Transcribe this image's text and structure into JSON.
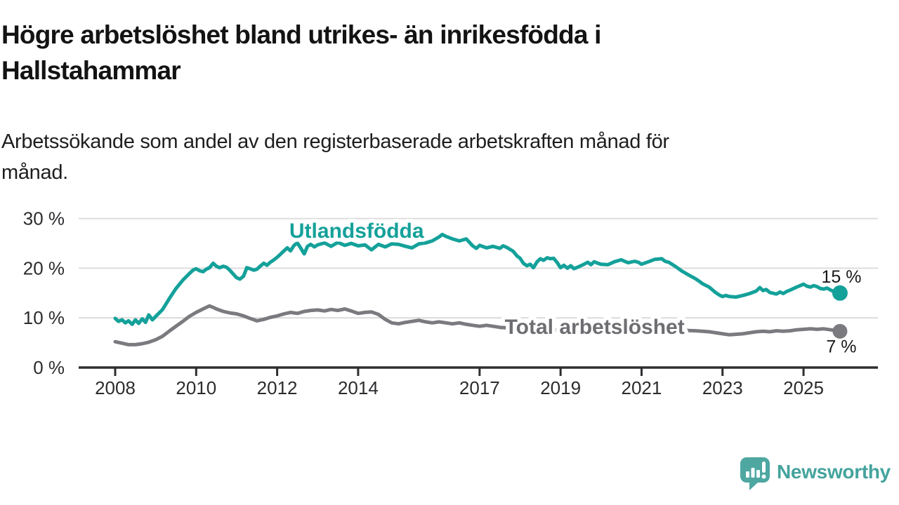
{
  "header": {
    "title_lines": [
      "Högre arbetslöshet bland utrikes- än inrikesfödda i",
      "Hallstahammar"
    ],
    "subtitle_lines": [
      "Arbetssökande som andel av den registerbaserade arbetskraften månad för",
      "månad."
    ]
  },
  "logo": {
    "text": "Newsworthy",
    "mark": "speech-bubble-bar-chart-icon",
    "color": "#44a39d"
  },
  "chart_data": {
    "type": "line",
    "unit": "%",
    "grid": "horizontal",
    "x_axis": {
      "ticks": [
        2008,
        2010,
        2012,
        2014,
        2017,
        2019,
        2021,
        2023,
        2025
      ],
      "range": [
        2007.1,
        2026.8
      ]
    },
    "y_axis": {
      "range": [
        0,
        32
      ],
      "ticks": [
        {
          "value": 0,
          "label": "0 %"
        },
        {
          "value": 10,
          "label": "10 %"
        },
        {
          "value": 20,
          "label": "20 %"
        },
        {
          "value": 30,
          "label": "30 %"
        }
      ]
    },
    "series": [
      {
        "name": "Utlandsfödda",
        "color": "#14a19a",
        "label_color": "#14a19a",
        "end_label": "15 %",
        "end_label_offset": [
          2,
          -15
        ],
        "label_pos": {
          "x": 2012.3,
          "y": 26.1
        },
        "points": [
          [
            2008.0,
            9.9
          ],
          [
            2008.08,
            9.3
          ],
          [
            2008.17,
            9.6
          ],
          [
            2008.25,
            9.0
          ],
          [
            2008.33,
            9.4
          ],
          [
            2008.42,
            8.7
          ],
          [
            2008.5,
            9.6
          ],
          [
            2008.58,
            8.9
          ],
          [
            2008.67,
            9.8
          ],
          [
            2008.75,
            9.1
          ],
          [
            2008.83,
            10.6
          ],
          [
            2008.92,
            9.6
          ],
          [
            2009.0,
            10.3
          ],
          [
            2009.17,
            11.7
          ],
          [
            2009.33,
            13.8
          ],
          [
            2009.5,
            15.9
          ],
          [
            2009.67,
            17.6
          ],
          [
            2009.83,
            18.9
          ],
          [
            2009.92,
            19.6
          ],
          [
            2010.0,
            19.9
          ],
          [
            2010.08,
            19.5
          ],
          [
            2010.17,
            19.3
          ],
          [
            2010.25,
            19.8
          ],
          [
            2010.33,
            20.1
          ],
          [
            2010.42,
            21.0
          ],
          [
            2010.5,
            20.4
          ],
          [
            2010.58,
            20.1
          ],
          [
            2010.67,
            20.4
          ],
          [
            2010.75,
            20.2
          ],
          [
            2010.83,
            19.6
          ],
          [
            2010.92,
            18.8
          ],
          [
            2011.0,
            18.1
          ],
          [
            2011.08,
            17.8
          ],
          [
            2011.17,
            18.4
          ],
          [
            2011.25,
            20.1
          ],
          [
            2011.33,
            19.9
          ],
          [
            2011.42,
            19.6
          ],
          [
            2011.5,
            19.8
          ],
          [
            2011.58,
            20.4
          ],
          [
            2011.67,
            21.0
          ],
          [
            2011.75,
            20.6
          ],
          [
            2011.83,
            21.2
          ],
          [
            2011.92,
            21.7
          ],
          [
            2012.0,
            22.2
          ],
          [
            2012.08,
            22.8
          ],
          [
            2012.17,
            23.5
          ],
          [
            2012.25,
            24.1
          ],
          [
            2012.33,
            23.5
          ],
          [
            2012.42,
            24.6
          ],
          [
            2012.5,
            25.1
          ],
          [
            2012.58,
            24.1
          ],
          [
            2012.67,
            22.9
          ],
          [
            2012.75,
            24.4
          ],
          [
            2012.83,
            24.8
          ],
          [
            2012.92,
            24.3
          ],
          [
            2013.0,
            24.7
          ],
          [
            2013.17,
            25.1
          ],
          [
            2013.33,
            24.4
          ],
          [
            2013.5,
            25.2
          ],
          [
            2013.67,
            24.6
          ],
          [
            2013.83,
            25.0
          ],
          [
            2014.0,
            24.5
          ],
          [
            2014.17,
            24.7
          ],
          [
            2014.33,
            23.7
          ],
          [
            2014.5,
            24.8
          ],
          [
            2014.67,
            24.3
          ],
          [
            2014.83,
            24.9
          ],
          [
            2015.0,
            24.8
          ],
          [
            2015.17,
            24.4
          ],
          [
            2015.33,
            24.1
          ],
          [
            2015.5,
            24.9
          ],
          [
            2015.67,
            25.1
          ],
          [
            2015.83,
            25.5
          ],
          [
            2016.0,
            26.3
          ],
          [
            2016.08,
            26.8
          ],
          [
            2016.17,
            26.4
          ],
          [
            2016.33,
            25.9
          ],
          [
            2016.5,
            25.5
          ],
          [
            2016.67,
            25.9
          ],
          [
            2016.83,
            24.5
          ],
          [
            2016.92,
            24.0
          ],
          [
            2017.0,
            24.6
          ],
          [
            2017.17,
            24.1
          ],
          [
            2017.33,
            24.4
          ],
          [
            2017.5,
            24.0
          ],
          [
            2017.58,
            24.5
          ],
          [
            2017.67,
            24.2
          ],
          [
            2017.83,
            23.4
          ],
          [
            2017.92,
            22.5
          ],
          [
            2018.0,
            22.0
          ],
          [
            2018.08,
            21.0
          ],
          [
            2018.17,
            20.5
          ],
          [
            2018.25,
            20.8
          ],
          [
            2018.33,
            20.1
          ],
          [
            2018.42,
            21.3
          ],
          [
            2018.5,
            21.9
          ],
          [
            2018.58,
            21.6
          ],
          [
            2018.67,
            22.1
          ],
          [
            2018.75,
            21.9
          ],
          [
            2018.83,
            22.0
          ],
          [
            2018.92,
            21.1
          ],
          [
            2019.0,
            20.1
          ],
          [
            2019.08,
            20.6
          ],
          [
            2019.17,
            20.0
          ],
          [
            2019.25,
            20.5
          ],
          [
            2019.33,
            19.9
          ],
          [
            2019.42,
            20.2
          ],
          [
            2019.5,
            20.5
          ],
          [
            2019.58,
            20.8
          ],
          [
            2019.67,
            21.2
          ],
          [
            2019.75,
            20.7
          ],
          [
            2019.83,
            21.3
          ],
          [
            2019.92,
            21.0
          ],
          [
            2020.0,
            20.8
          ],
          [
            2020.17,
            20.7
          ],
          [
            2020.33,
            21.3
          ],
          [
            2020.5,
            21.7
          ],
          [
            2020.58,
            21.4
          ],
          [
            2020.67,
            21.1
          ],
          [
            2020.83,
            21.4
          ],
          [
            2020.92,
            21.2
          ],
          [
            2021.0,
            20.8
          ],
          [
            2021.17,
            21.3
          ],
          [
            2021.33,
            21.8
          ],
          [
            2021.5,
            21.9
          ],
          [
            2021.58,
            21.4
          ],
          [
            2021.67,
            21.2
          ],
          [
            2021.83,
            20.4
          ],
          [
            2022.0,
            19.4
          ],
          [
            2022.17,
            18.6
          ],
          [
            2022.33,
            17.9
          ],
          [
            2022.42,
            17.4
          ],
          [
            2022.5,
            16.9
          ],
          [
            2022.67,
            16.2
          ],
          [
            2022.83,
            15.1
          ],
          [
            2022.92,
            14.6
          ],
          [
            2023.0,
            14.3
          ],
          [
            2023.08,
            14.5
          ],
          [
            2023.17,
            14.3
          ],
          [
            2023.33,
            14.2
          ],
          [
            2023.5,
            14.5
          ],
          [
            2023.67,
            14.9
          ],
          [
            2023.83,
            15.4
          ],
          [
            2023.92,
            16.1
          ],
          [
            2024.0,
            15.5
          ],
          [
            2024.08,
            15.7
          ],
          [
            2024.17,
            15.1
          ],
          [
            2024.33,
            14.8
          ],
          [
            2024.42,
            15.2
          ],
          [
            2024.5,
            14.9
          ],
          [
            2024.58,
            15.3
          ],
          [
            2024.67,
            15.6
          ],
          [
            2024.83,
            16.2
          ],
          [
            2024.92,
            16.5
          ],
          [
            2025.0,
            16.8
          ],
          [
            2025.08,
            16.4
          ],
          [
            2025.17,
            16.2
          ],
          [
            2025.25,
            16.5
          ],
          [
            2025.33,
            16.3
          ],
          [
            2025.42,
            15.9
          ],
          [
            2025.5,
            15.8
          ],
          [
            2025.58,
            16.0
          ],
          [
            2025.67,
            15.6
          ],
          [
            2025.75,
            15.3
          ],
          [
            2025.83,
            15.0
          ],
          [
            2025.9,
            15.0
          ]
        ]
      },
      {
        "name": "Total arbetslöshet",
        "color": "#7a7a7f",
        "label_color": "#6d6d72",
        "end_label": "7 %",
        "end_label_offset": [
          2,
          30
        ],
        "label_pos": {
          "x": 2017.62,
          "y": 6.8
        },
        "points": [
          [
            2008.0,
            5.2
          ],
          [
            2008.17,
            4.9
          ],
          [
            2008.33,
            4.6
          ],
          [
            2008.5,
            4.6
          ],
          [
            2008.67,
            4.8
          ],
          [
            2008.83,
            5.1
          ],
          [
            2009.0,
            5.6
          ],
          [
            2009.17,
            6.3
          ],
          [
            2009.33,
            7.3
          ],
          [
            2009.5,
            8.3
          ],
          [
            2009.67,
            9.3
          ],
          [
            2009.83,
            10.3
          ],
          [
            2010.0,
            11.1
          ],
          [
            2010.17,
            11.8
          ],
          [
            2010.25,
            12.1
          ],
          [
            2010.33,
            12.4
          ],
          [
            2010.42,
            12.1
          ],
          [
            2010.5,
            11.8
          ],
          [
            2010.67,
            11.3
          ],
          [
            2010.83,
            11.0
          ],
          [
            2011.0,
            10.8
          ],
          [
            2011.17,
            10.4
          ],
          [
            2011.33,
            9.9
          ],
          [
            2011.5,
            9.4
          ],
          [
            2011.67,
            9.7
          ],
          [
            2011.83,
            10.1
          ],
          [
            2012.0,
            10.4
          ],
          [
            2012.17,
            10.8
          ],
          [
            2012.33,
            11.1
          ],
          [
            2012.5,
            10.9
          ],
          [
            2012.67,
            11.3
          ],
          [
            2012.83,
            11.5
          ],
          [
            2013.0,
            11.6
          ],
          [
            2013.17,
            11.4
          ],
          [
            2013.33,
            11.7
          ],
          [
            2013.5,
            11.5
          ],
          [
            2013.67,
            11.8
          ],
          [
            2013.83,
            11.4
          ],
          [
            2014.0,
            10.9
          ],
          [
            2014.17,
            11.1
          ],
          [
            2014.33,
            11.2
          ],
          [
            2014.5,
            10.7
          ],
          [
            2014.67,
            9.7
          ],
          [
            2014.83,
            9.0
          ],
          [
            2015.0,
            8.8
          ],
          [
            2015.17,
            9.1
          ],
          [
            2015.33,
            9.3
          ],
          [
            2015.5,
            9.5
          ],
          [
            2015.67,
            9.2
          ],
          [
            2015.83,
            9.0
          ],
          [
            2016.0,
            9.2
          ],
          [
            2016.17,
            9.0
          ],
          [
            2016.33,
            8.8
          ],
          [
            2016.5,
            9.0
          ],
          [
            2016.67,
            8.7
          ],
          [
            2016.83,
            8.5
          ],
          [
            2017.0,
            8.3
          ],
          [
            2017.17,
            8.5
          ],
          [
            2017.33,
            8.3
          ],
          [
            2017.5,
            8.1
          ],
          [
            2017.67,
            8.0
          ],
          [
            2017.83,
            7.9
          ],
          [
            2018.0,
            7.8
          ],
          [
            2018.33,
            7.7
          ],
          [
            2018.67,
            7.6
          ],
          [
            2019.0,
            7.5
          ],
          [
            2019.33,
            7.4
          ],
          [
            2019.67,
            7.4
          ],
          [
            2020.0,
            7.6
          ],
          [
            2020.33,
            8.4
          ],
          [
            2020.67,
            8.3
          ],
          [
            2021.0,
            8.0
          ],
          [
            2021.33,
            7.8
          ],
          [
            2021.67,
            7.6
          ],
          [
            2022.0,
            7.5
          ],
          [
            2022.33,
            7.4
          ],
          [
            2022.5,
            7.3
          ],
          [
            2022.67,
            7.2
          ],
          [
            2022.83,
            7.0
          ],
          [
            2023.0,
            6.8
          ],
          [
            2023.17,
            6.6
          ],
          [
            2023.33,
            6.7
          ],
          [
            2023.5,
            6.8
          ],
          [
            2023.67,
            7.0
          ],
          [
            2023.83,
            7.2
          ],
          [
            2024.0,
            7.3
          ],
          [
            2024.17,
            7.2
          ],
          [
            2024.33,
            7.4
          ],
          [
            2024.5,
            7.3
          ],
          [
            2024.67,
            7.4
          ],
          [
            2024.83,
            7.6
          ],
          [
            2025.0,
            7.7
          ],
          [
            2025.17,
            7.8
          ],
          [
            2025.33,
            7.7
          ],
          [
            2025.5,
            7.8
          ],
          [
            2025.67,
            7.6
          ],
          [
            2025.83,
            7.4
          ],
          [
            2025.9,
            7.3
          ]
        ]
      }
    ]
  },
  "colors": {
    "accent_teal": "#14a19a",
    "series_gray": "#7a7a7f",
    "axis_line": "#2e2e31",
    "gridline": "#d9d9d9",
    "axis_text": "#2c2c2f",
    "logo_teal": "#4ea7a1"
  }
}
